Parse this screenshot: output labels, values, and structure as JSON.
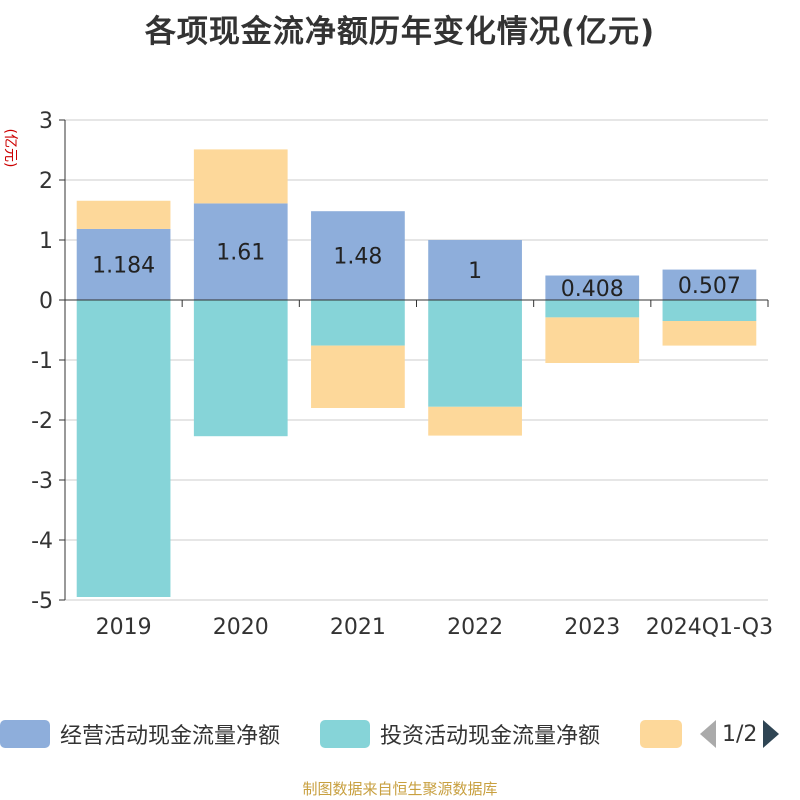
{
  "title": "各项现金流净额历年变化情况(亿元)",
  "unit_label": "(亿元)",
  "source": "制图数据来自恒生聚源数据库",
  "legend": {
    "items": [
      {
        "label": "经营活动现金流量净额",
        "color": "#8eaedb"
      },
      {
        "label": "投资活动现金流量净额",
        "color": "#86d4d8"
      },
      {
        "label": "",
        "color": "#fdd89a"
      }
    ],
    "page_text": "1/2"
  },
  "chart_data": {
    "type": "bar",
    "stacked": true,
    "categories": [
      "2019",
      "2020",
      "2021",
      "2022",
      "2023",
      "2024Q1-Q3"
    ],
    "ylim": [
      -5,
      3
    ],
    "yticks": [
      3,
      2,
      1,
      0,
      -1,
      -2,
      -3,
      -4,
      -5
    ],
    "series": [
      {
        "name": "经营活动现金流量净额",
        "color": "#8eaedb",
        "values": [
          1.184,
          1.61,
          1.48,
          1,
          0.408,
          0.507
        ],
        "labels": [
          "1.184",
          "1.61",
          "1.48",
          "1",
          "0.408",
          "0.507"
        ]
      },
      {
        "name": "投资活动现金流量净额",
        "color": "#86d4d8",
        "values": [
          -4.95,
          -2.27,
          -0.76,
          -1.78,
          -0.29,
          -0.35
        ]
      },
      {
        "name": "",
        "color": "#fdd89a",
        "values": [
          0.47,
          0.9,
          -1.04,
          -0.48,
          -0.76,
          -0.41
        ]
      }
    ]
  }
}
